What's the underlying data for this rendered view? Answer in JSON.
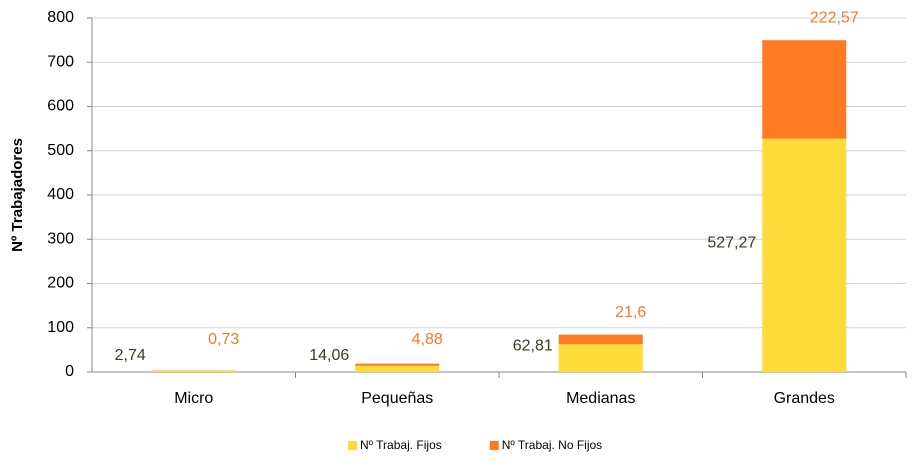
{
  "chart_data": {
    "type": "stacked_bar",
    "ylabel": "Nº Trabajadores",
    "categories": [
      "Micro",
      "Pequeñas",
      "Medianas",
      "Grandes"
    ],
    "series": [
      {
        "name": "Nº Trabaj. Fijos",
        "color": "#fddc3a",
        "label_color": "#3c3c1e",
        "values": [
          2.74,
          14.06,
          62.81,
          527.27
        ],
        "value_labels": [
          "2,74",
          "14,06",
          "62,81",
          "527,27"
        ]
      },
      {
        "name": "Nº Trabaj. No Fijos",
        "color": "#ff7a22",
        "label_color": "#f5792a",
        "values": [
          0.73,
          4.88,
          21.6,
          222.57
        ],
        "value_labels": [
          "0,73",
          "4,88",
          "21,6",
          "222,57"
        ]
      }
    ],
    "ylim": [
      0,
      800
    ],
    "yticks": [
      0,
      100,
      200,
      300,
      400,
      500,
      600,
      700,
      800
    ],
    "grid": true,
    "legend": "bottom"
  }
}
